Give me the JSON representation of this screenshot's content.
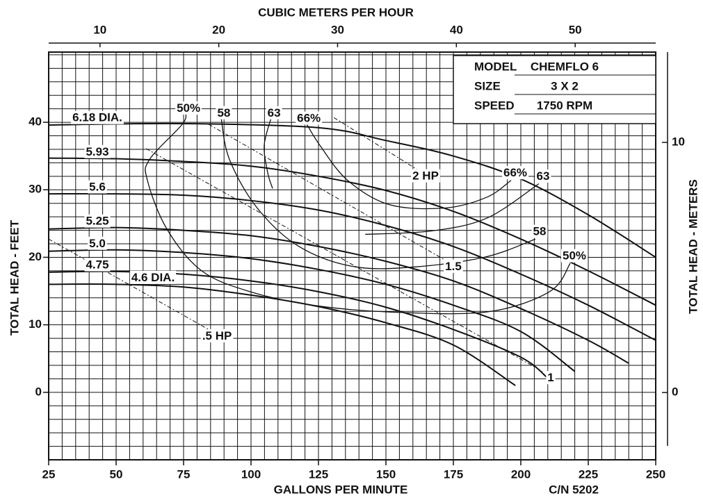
{
  "chart_data": {
    "type": "line",
    "x_label": "GALLONS PER MINUTE",
    "x2_label": "CUBIC METERS PER HOUR",
    "y_label": "TOTAL HEAD - FEET",
    "y2_label": "TOTAL HEAD - METERS",
    "annotation": "C/N 5202",
    "xlim": [
      25,
      250
    ],
    "xticks": [
      25,
      50,
      75,
      100,
      125,
      150,
      175,
      200,
      225,
      250
    ],
    "x2lim": [
      5.68,
      56.78
    ],
    "x2ticks": [
      10,
      20,
      30,
      40,
      50
    ],
    "ylim": [
      -10,
      50.4
    ],
    "yticks": [
      0,
      10,
      20,
      30,
      40
    ],
    "y2lim": [
      -2.69,
      13.61
    ],
    "y2ticks": [
      0,
      10
    ],
    "minor_grid": {
      "x": 5,
      "y": 2
    },
    "info": [
      {
        "label": "MODEL",
        "value": "CHEMFLO 6"
      },
      {
        "label": "SIZE",
        "value": "3 X 2"
      },
      {
        "label": "SPEED",
        "value": "1750 RPM"
      }
    ],
    "series": [
      {
        "name": "6.18 DIA.",
        "x": [
          25,
          75,
          125,
          150,
          175,
          200,
          225,
          250
        ],
        "values": [
          39.6,
          39.8,
          39.2,
          37.3,
          35.0,
          31.6,
          26.3,
          20.0
        ]
      },
      {
        "name": "5.93",
        "x": [
          25,
          50,
          75,
          100,
          125,
          150,
          175,
          200,
          225,
          250
        ],
        "values": [
          34.7,
          34.6,
          34.2,
          33.5,
          32.0,
          29.9,
          26.8,
          22.7,
          18.0,
          12.9
        ]
      },
      {
        "name": "5.6",
        "x": [
          25,
          50,
          75,
          100,
          125,
          150,
          175,
          200,
          225,
          250
        ],
        "values": [
          29.4,
          29.4,
          29.2,
          28.4,
          27.0,
          24.7,
          21.6,
          17.5,
          12.9,
          7.7
        ]
      },
      {
        "name": "5.25",
        "x": [
          25,
          50,
          75,
          100,
          125,
          150,
          175,
          200,
          225,
          240
        ],
        "values": [
          24.2,
          24.4,
          24.0,
          23.2,
          21.6,
          19.4,
          16.5,
          12.4,
          7.7,
          4.3
        ]
      },
      {
        "name": "5.0",
        "x": [
          25,
          50,
          75,
          100,
          125,
          150,
          175,
          200,
          220
        ],
        "values": [
          20.9,
          21.1,
          20.7,
          19.8,
          18.2,
          16.0,
          12.9,
          9.0,
          3.1
        ]
      },
      {
        "name": "4.75",
        "x": [
          25,
          50,
          75,
          100,
          125,
          150,
          175,
          200,
          210
        ],
        "values": [
          17.8,
          17.9,
          17.5,
          16.5,
          14.9,
          12.6,
          9.3,
          5.2,
          2.1
        ]
      },
      {
        "name": "4.6 DIA.",
        "x": [
          25,
          50,
          75,
          100,
          125,
          150,
          175,
          198
        ],
        "values": [
          16.0,
          16.0,
          15.6,
          14.4,
          12.7,
          10.3,
          7.0,
          1.0
        ]
      }
    ],
    "efficiency": [
      {
        "name": "50%",
        "x": [
          75.8,
          74.5,
          62.4,
          61.6,
          68.8,
          81.7,
          99.7,
          122.9,
          151.3,
          187.4,
          210.6,
          218.3
        ],
        "values": [
          41.4,
          39.7,
          34.5,
          31.4,
          24.2,
          18.0,
          14.9,
          12.9,
          11.9,
          11.9,
          14.9,
          19.1
        ]
      },
      {
        "name": "58",
        "x": [
          88.9,
          92,
          102.3,
          117.8,
          138.4,
          161.6,
          187.4,
          205.4
        ],
        "values": [
          40.7,
          34.5,
          27.3,
          21.6,
          18.6,
          18.6,
          20.1,
          22.7
        ]
      },
      {
        "name": "63",
        "x": [
          107.5,
          104.9,
          106.2,
          108,
          null,
          142.3,
          166.8,
          187.4,
          206.7
        ],
        "values": [
          40.7,
          36.6,
          32.5,
          30.2,
          null,
          23.4,
          23.9,
          25.8,
          30.9
        ]
      },
      {
        "name": "66%",
        "x": [
          120.4,
          125.5,
          135.8,
          151.3,
          171.9,
          187.4,
          196.4
        ],
        "values": [
          39.9,
          36.6,
          31.4,
          27.8,
          27.3,
          28.9,
          31.4
        ]
      }
    ],
    "power": [
      {
        "name": "2 HP",
        "x": [
          130.7,
          161.6
        ],
        "values": [
          40.7,
          33.0
        ]
      },
      {
        "name": "1.5",
        "x": [
          84.3,
          171.9
        ],
        "values": [
          39.7,
          19.6
        ]
      },
      {
        "name": "1",
        "x": [
          61.1,
          208
        ],
        "values": [
          36.1,
          3.1
        ]
      },
      {
        "name": ".5 HP",
        "x": [
          25,
          84.3
        ],
        "values": [
          22.7,
          9.3
        ]
      }
    ]
  }
}
